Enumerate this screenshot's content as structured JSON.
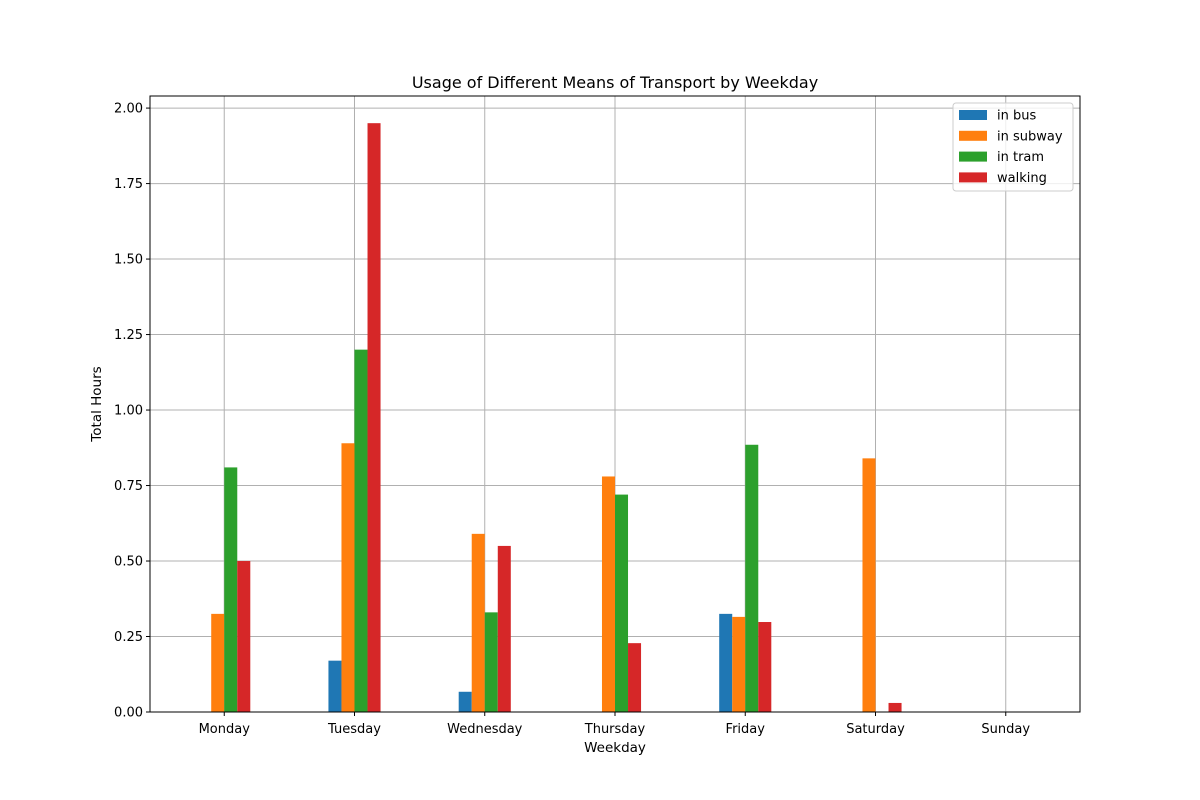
{
  "chart_data": {
    "type": "bar",
    "title": "Usage of Different Means of Transport by Weekday",
    "xlabel": "Weekday",
    "ylabel": "Total Hours",
    "categories": [
      "Monday",
      "Tuesday",
      "Wednesday",
      "Thursday",
      "Friday",
      "Saturday",
      "Sunday"
    ],
    "series": [
      {
        "name": "in bus",
        "color": "#1f77b4",
        "values": [
          0,
          0.17,
          0.067,
          0,
          0.325,
          0,
          0
        ]
      },
      {
        "name": "in subway",
        "color": "#ff7f0e",
        "values": [
          0.325,
          0.89,
          0.59,
          0.78,
          0.315,
          0.84,
          0
        ]
      },
      {
        "name": "in tram",
        "color": "#2ca02c",
        "values": [
          0.81,
          1.2,
          0.33,
          0.72,
          0.885,
          0,
          0
        ]
      },
      {
        "name": "walking",
        "color": "#d62728",
        "values": [
          0.5,
          1.95,
          0.55,
          0.228,
          0.298,
          0.03,
          0
        ]
      }
    ],
    "ylim": [
      0,
      2.04
    ],
    "yticks": [
      "0.00",
      "0.25",
      "0.50",
      "0.75",
      "1.00",
      "1.25",
      "1.50",
      "1.75",
      "2.00"
    ],
    "grid": true,
    "legend_position": "top-right"
  }
}
